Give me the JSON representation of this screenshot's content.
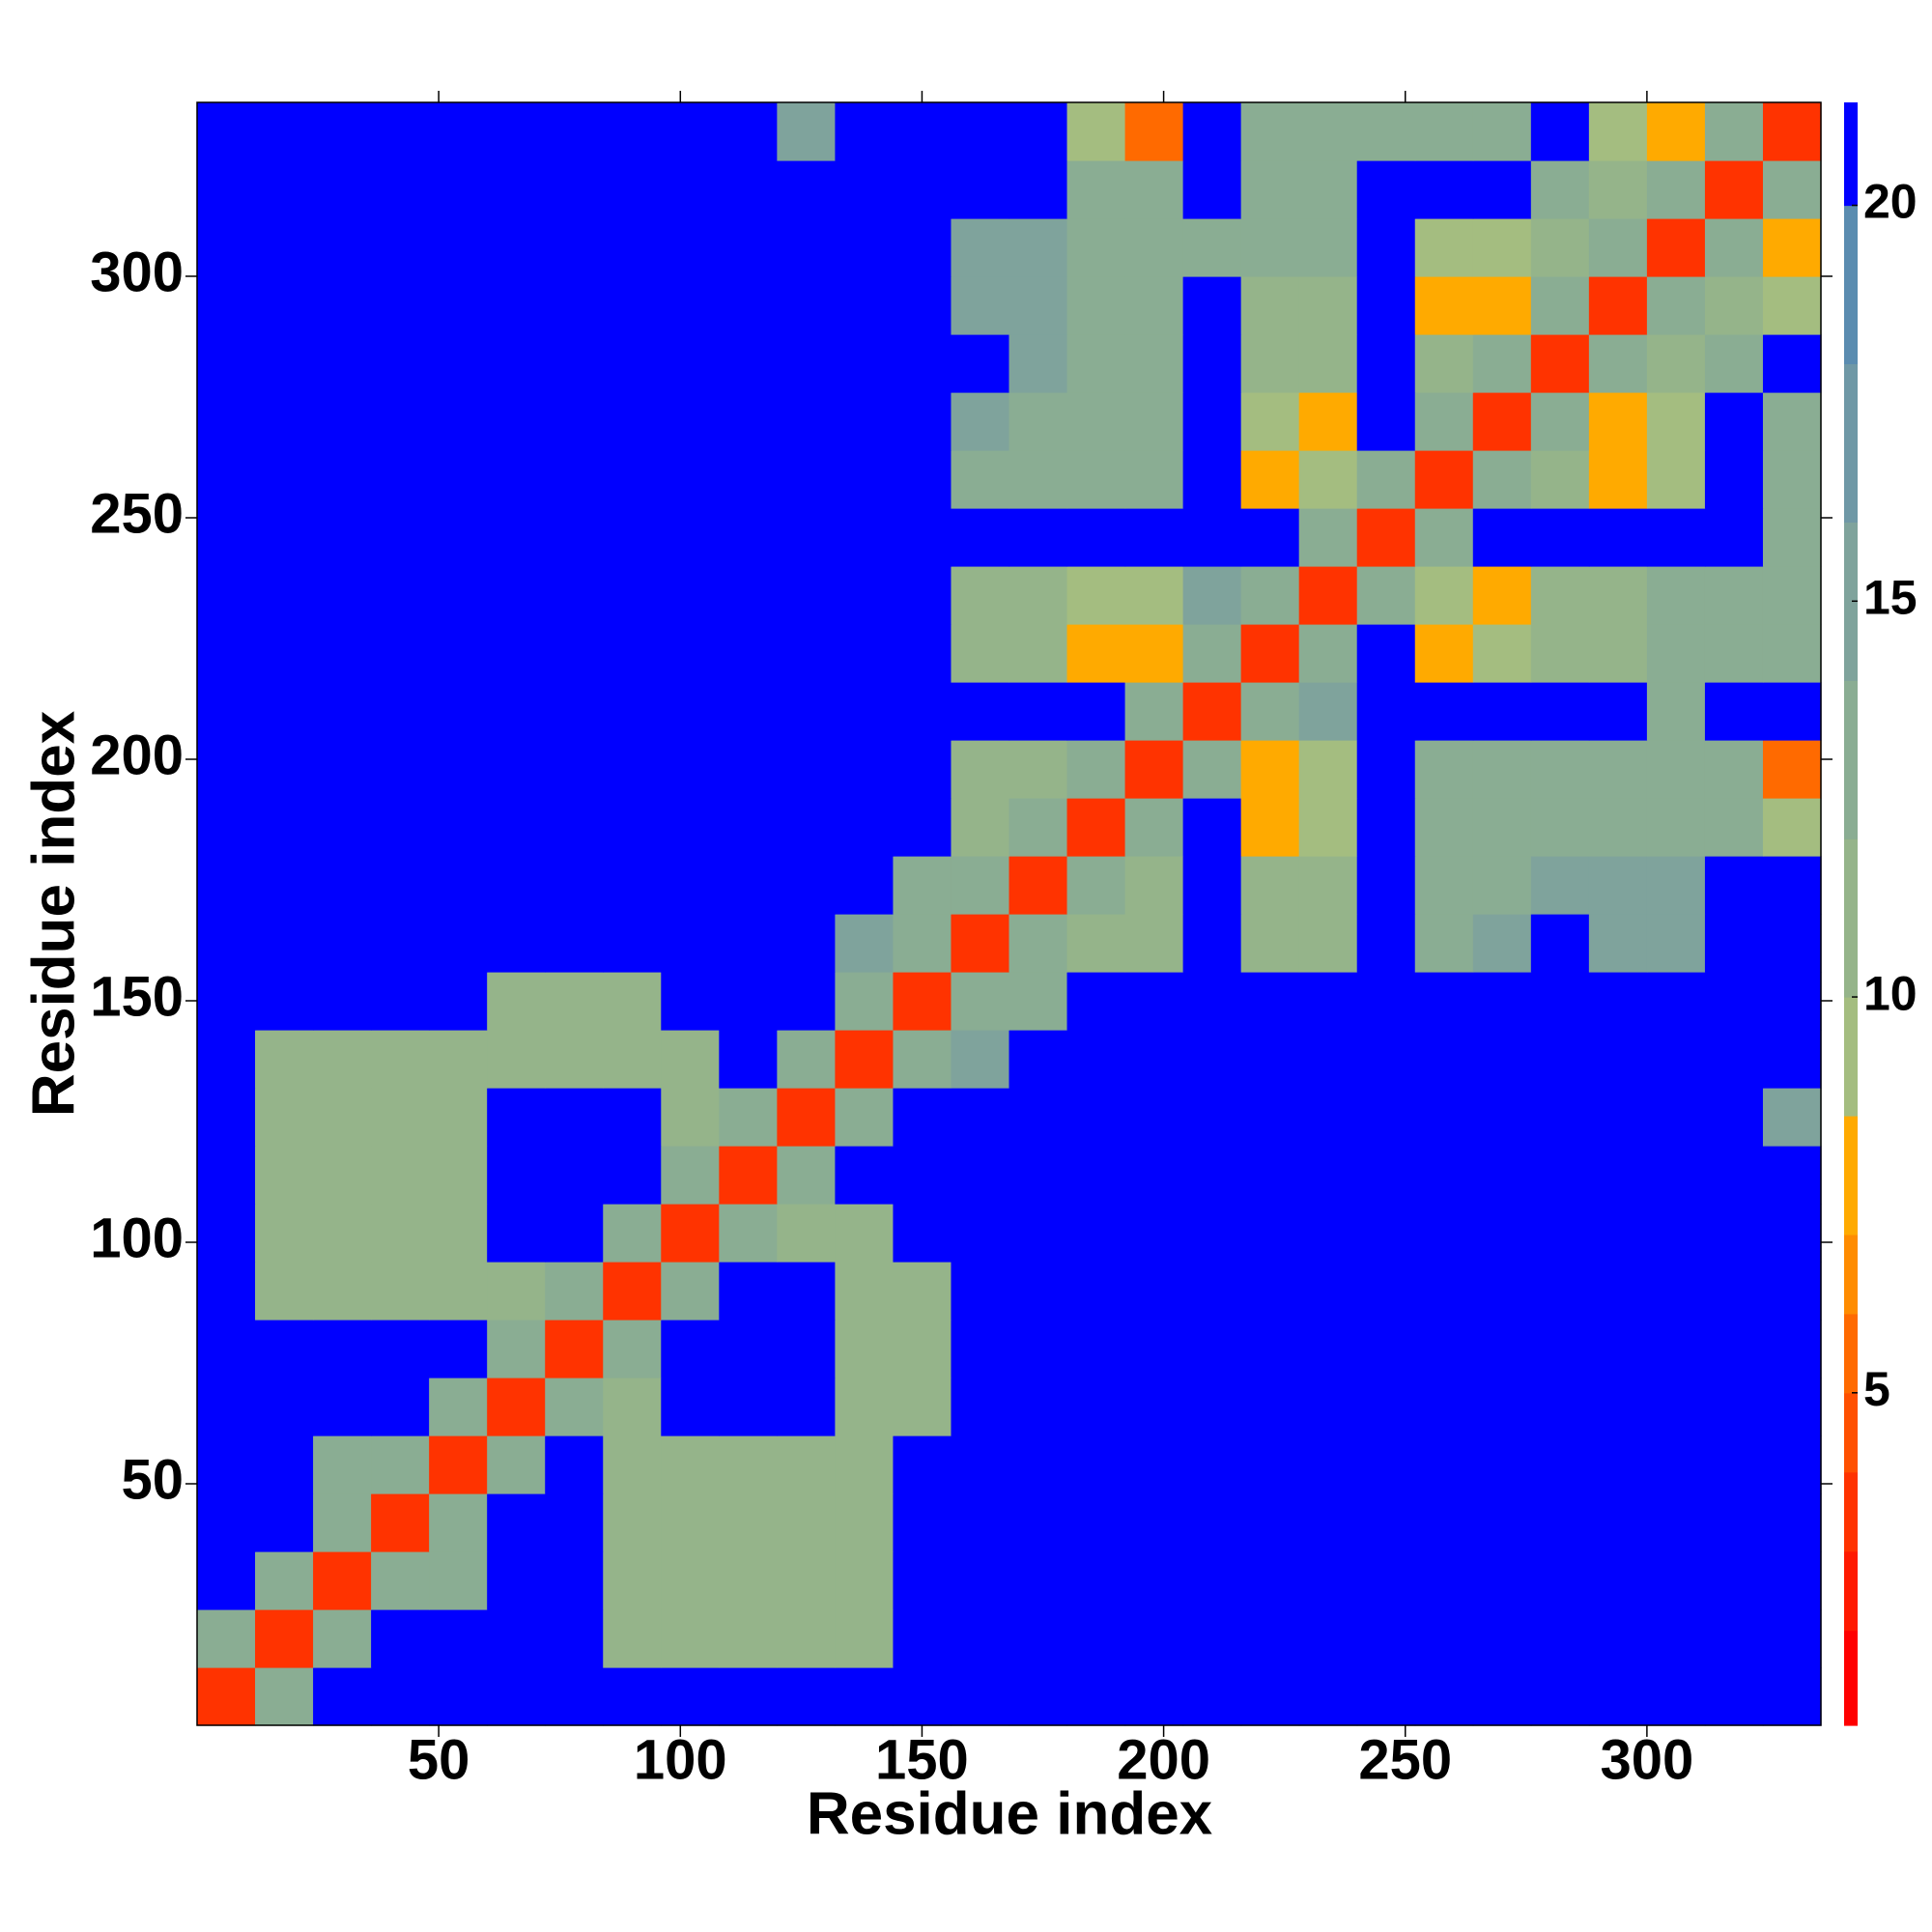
{
  "chart_data": {
    "type": "heatmap",
    "xlabel": "Residue index",
    "ylabel": "Residue index",
    "xlim": [
      0,
      336
    ],
    "ylim": [
      0,
      336
    ],
    "xticks": [
      50,
      100,
      150,
      200,
      250,
      300
    ],
    "yticks": [
      50,
      100,
      150,
      200,
      250,
      300
    ],
    "xbins": [
      0,
      12,
      24,
      36,
      48,
      60,
      72,
      84,
      96,
      108,
      120,
      132,
      144,
      156,
      168,
      180,
      192,
      204,
      216,
      228,
      240,
      252,
      264,
      276,
      288,
      300,
      312,
      324,
      336
    ],
    "ybins": [
      0,
      12,
      24,
      36,
      48,
      60,
      72,
      84,
      96,
      108,
      120,
      132,
      144,
      156,
      168,
      180,
      192,
      204,
      216,
      228,
      240,
      252,
      264,
      276,
      288,
      300,
      312,
      324,
      336
    ],
    "zlim": [
      0.8,
      21.3
    ],
    "zticks": [
      5,
      10,
      15,
      20
    ],
    "colorscale": [
      {
        "value": 2,
        "color": "#ff0000"
      },
      {
        "value": 3,
        "color": "#ff1a00"
      },
      {
        "value": 4,
        "color": "#ff3300"
      },
      {
        "value": 5,
        "color": "#ff5000"
      },
      {
        "value": 6,
        "color": "#ff6a00"
      },
      {
        "value": 7,
        "color": "#ff8c00"
      },
      {
        "value": 8.5,
        "color": "#ffaa00"
      },
      {
        "value": 10,
        "color": "#a4bd80"
      },
      {
        "value": 12,
        "color": "#95b48a"
      },
      {
        "value": 14,
        "color": "#8aad93"
      },
      {
        "value": 16,
        "color": "#7fa39c"
      },
      {
        "value": 18,
        "color": "#6f98a6"
      },
      {
        "value": 20,
        "color": "#5a8cb0"
      },
      {
        "value": 21.3,
        "color": "#0000ff"
      }
    ],
    "z": [
      [
        4,
        14,
        21,
        21,
        21,
        21,
        21,
        21,
        21,
        21,
        21,
        21,
        21,
        21,
        21,
        21,
        21,
        21,
        21,
        21,
        21,
        21,
        21,
        21,
        21,
        21,
        21,
        21
      ],
      [
        14,
        4,
        14,
        21,
        21,
        21,
        21,
        12,
        12,
        12,
        12,
        12,
        21,
        21,
        21,
        21,
        21,
        21,
        21,
        21,
        21,
        21,
        21,
        21,
        21,
        21,
        21,
        21
      ],
      [
        21,
        14,
        4,
        14,
        13,
        21,
        21,
        12,
        12,
        12,
        12,
        12,
        21,
        21,
        21,
        21,
        21,
        21,
        21,
        21,
        21,
        21,
        21,
        21,
        21,
        21,
        21,
        21
      ],
      [
        21,
        21,
        14,
        4,
        14,
        21,
        21,
        12,
        12,
        12,
        12,
        12,
        21,
        21,
        21,
        21,
        21,
        21,
        21,
        21,
        21,
        21,
        21,
        21,
        21,
        21,
        21,
        21
      ],
      [
        21,
        21,
        13,
        14,
        4,
        14,
        21,
        12,
        12,
        12,
        12,
        12,
        21,
        21,
        21,
        21,
        21,
        21,
        21,
        21,
        21,
        21,
        21,
        21,
        21,
        21,
        21,
        21
      ],
      [
        21,
        21,
        21,
        21,
        14,
        4,
        14,
        12,
        21,
        21,
        21,
        12,
        12,
        21,
        21,
        21,
        21,
        21,
        21,
        21,
        21,
        21,
        21,
        21,
        21,
        21,
        21,
        21
      ],
      [
        21,
        21,
        21,
        21,
        21,
        14,
        4,
        14,
        21,
        21,
        21,
        12,
        12,
        21,
        21,
        21,
        21,
        21,
        21,
        21,
        21,
        21,
        21,
        21,
        21,
        21,
        21,
        21
      ],
      [
        21,
        12,
        12,
        12,
        12,
        12,
        14,
        4,
        14,
        21,
        21,
        12,
        12,
        21,
        21,
        21,
        21,
        21,
        21,
        21,
        21,
        21,
        21,
        21,
        21,
        21,
        21,
        21
      ],
      [
        21,
        12,
        12,
        12,
        12,
        21,
        21,
        14,
        4,
        14,
        12,
        12,
        21,
        21,
        21,
        21,
        21,
        21,
        21,
        21,
        21,
        21,
        21,
        21,
        21,
        21,
        21,
        21
      ],
      [
        21,
        12,
        12,
        12,
        12,
        21,
        21,
        21,
        14,
        4,
        14,
        21,
        21,
        21,
        21,
        21,
        21,
        21,
        21,
        21,
        21,
        21,
        21,
        21,
        21,
        21,
        21,
        21
      ],
      [
        21,
        12,
        12,
        12,
        12,
        21,
        21,
        21,
        12,
        14,
        4,
        14,
        21,
        21,
        21,
        21,
        21,
        21,
        21,
        21,
        21,
        21,
        21,
        21,
        21,
        21,
        21,
        16
      ],
      [
        21,
        12,
        12,
        12,
        12,
        12,
        12,
        12,
        12,
        21,
        14,
        4,
        14,
        16,
        21,
        21,
        21,
        21,
        21,
        21,
        21,
        21,
        21,
        21,
        21,
        21,
        21,
        21
      ],
      [
        21,
        21,
        21,
        21,
        21,
        12,
        12,
        12,
        21,
        21,
        21,
        14,
        4,
        14,
        14,
        21,
        21,
        21,
        21,
        21,
        21,
        21,
        21,
        21,
        21,
        21,
        21,
        21
      ],
      [
        21,
        21,
        21,
        21,
        21,
        21,
        21,
        21,
        21,
        21,
        21,
        16,
        14,
        4,
        14,
        11,
        11,
        21,
        12,
        12,
        21,
        14,
        15,
        21,
        15,
        15,
        21,
        21
      ],
      [
        21,
        21,
        21,
        21,
        21,
        21,
        21,
        21,
        21,
        21,
        21,
        21,
        14,
        14,
        4,
        14,
        11,
        21,
        12,
        12,
        21,
        13,
        13,
        16,
        15,
        15,
        21,
        21
      ],
      [
        21,
        21,
        21,
        21,
        21,
        21,
        21,
        21,
        21,
        21,
        21,
        21,
        21,
        11,
        14,
        4,
        14,
        21,
        8,
        10,
        21,
        13,
        13,
        13,
        13,
        13,
        13,
        10
      ],
      [
        21,
        21,
        21,
        21,
        21,
        21,
        21,
        21,
        21,
        21,
        21,
        21,
        21,
        11,
        11,
        14,
        4,
        14,
        8,
        9,
        21,
        13,
        13,
        13,
        13,
        13,
        13,
        6
      ],
      [
        21,
        21,
        21,
        21,
        21,
        21,
        21,
        21,
        21,
        21,
        21,
        21,
        21,
        21,
        21,
        21,
        14,
        4,
        14,
        16,
        21,
        21,
        21,
        21,
        21,
        14,
        21,
        21
      ],
      [
        21,
        21,
        21,
        21,
        21,
        21,
        21,
        21,
        21,
        21,
        21,
        21,
        21,
        12,
        12,
        8,
        8,
        14,
        4,
        14,
        21,
        8,
        9,
        12,
        12,
        13,
        13,
        13
      ],
      [
        21,
        21,
        21,
        21,
        21,
        21,
        21,
        21,
        21,
        21,
        21,
        21,
        21,
        12,
        12,
        10,
        9,
        16,
        14,
        4,
        14,
        9,
        8,
        12,
        12,
        13,
        13,
        13
      ],
      [
        21,
        21,
        21,
        21,
        21,
        21,
        21,
        21,
        21,
        21,
        21,
        21,
        21,
        21,
        21,
        21,
        21,
        21,
        21,
        14,
        4,
        14,
        21,
        21,
        21,
        21,
        21,
        14
      ],
      [
        21,
        21,
        21,
        21,
        21,
        21,
        21,
        21,
        21,
        21,
        21,
        21,
        21,
        14,
        13,
        13,
        13,
        21,
        8,
        9,
        14,
        4,
        14,
        12,
        8,
        9,
        21,
        14
      ],
      [
        21,
        21,
        21,
        21,
        21,
        21,
        21,
        21,
        21,
        21,
        21,
        21,
        21,
        15,
        13,
        13,
        13,
        21,
        9,
        8,
        21,
        14,
        4,
        14,
        8,
        9,
        21,
        14
      ],
      [
        21,
        21,
        21,
        21,
        21,
        21,
        21,
        21,
        21,
        21,
        21,
        21,
        21,
        21,
        16,
        13,
        13,
        21,
        12,
        12,
        21,
        12,
        14,
        4,
        14,
        12,
        14,
        21
      ],
      [
        21,
        21,
        21,
        21,
        21,
        21,
        21,
        21,
        21,
        21,
        21,
        21,
        21,
        15,
        15,
        13,
        13,
        21,
        12,
        12,
        21,
        8,
        8,
        14,
        4,
        14,
        11,
        10
      ],
      [
        21,
        21,
        21,
        21,
        21,
        21,
        21,
        21,
        21,
        21,
        21,
        21,
        21,
        15,
        15,
        13,
        13,
        14,
        13,
        13,
        21,
        9,
        9,
        12,
        14,
        4,
        14,
        8
      ],
      [
        21,
        21,
        21,
        21,
        21,
        21,
        21,
        21,
        21,
        21,
        21,
        21,
        21,
        21,
        21,
        13,
        13,
        21,
        13,
        13,
        21,
        21,
        21,
        14,
        11,
        14,
        4,
        14
      ],
      [
        21,
        21,
        21,
        21,
        21,
        21,
        21,
        21,
        21,
        21,
        16,
        21,
        21,
        21,
        21,
        10,
        6,
        21,
        13,
        13,
        14,
        14,
        14,
        21,
        10,
        8,
        14,
        4
      ]
    ]
  }
}
